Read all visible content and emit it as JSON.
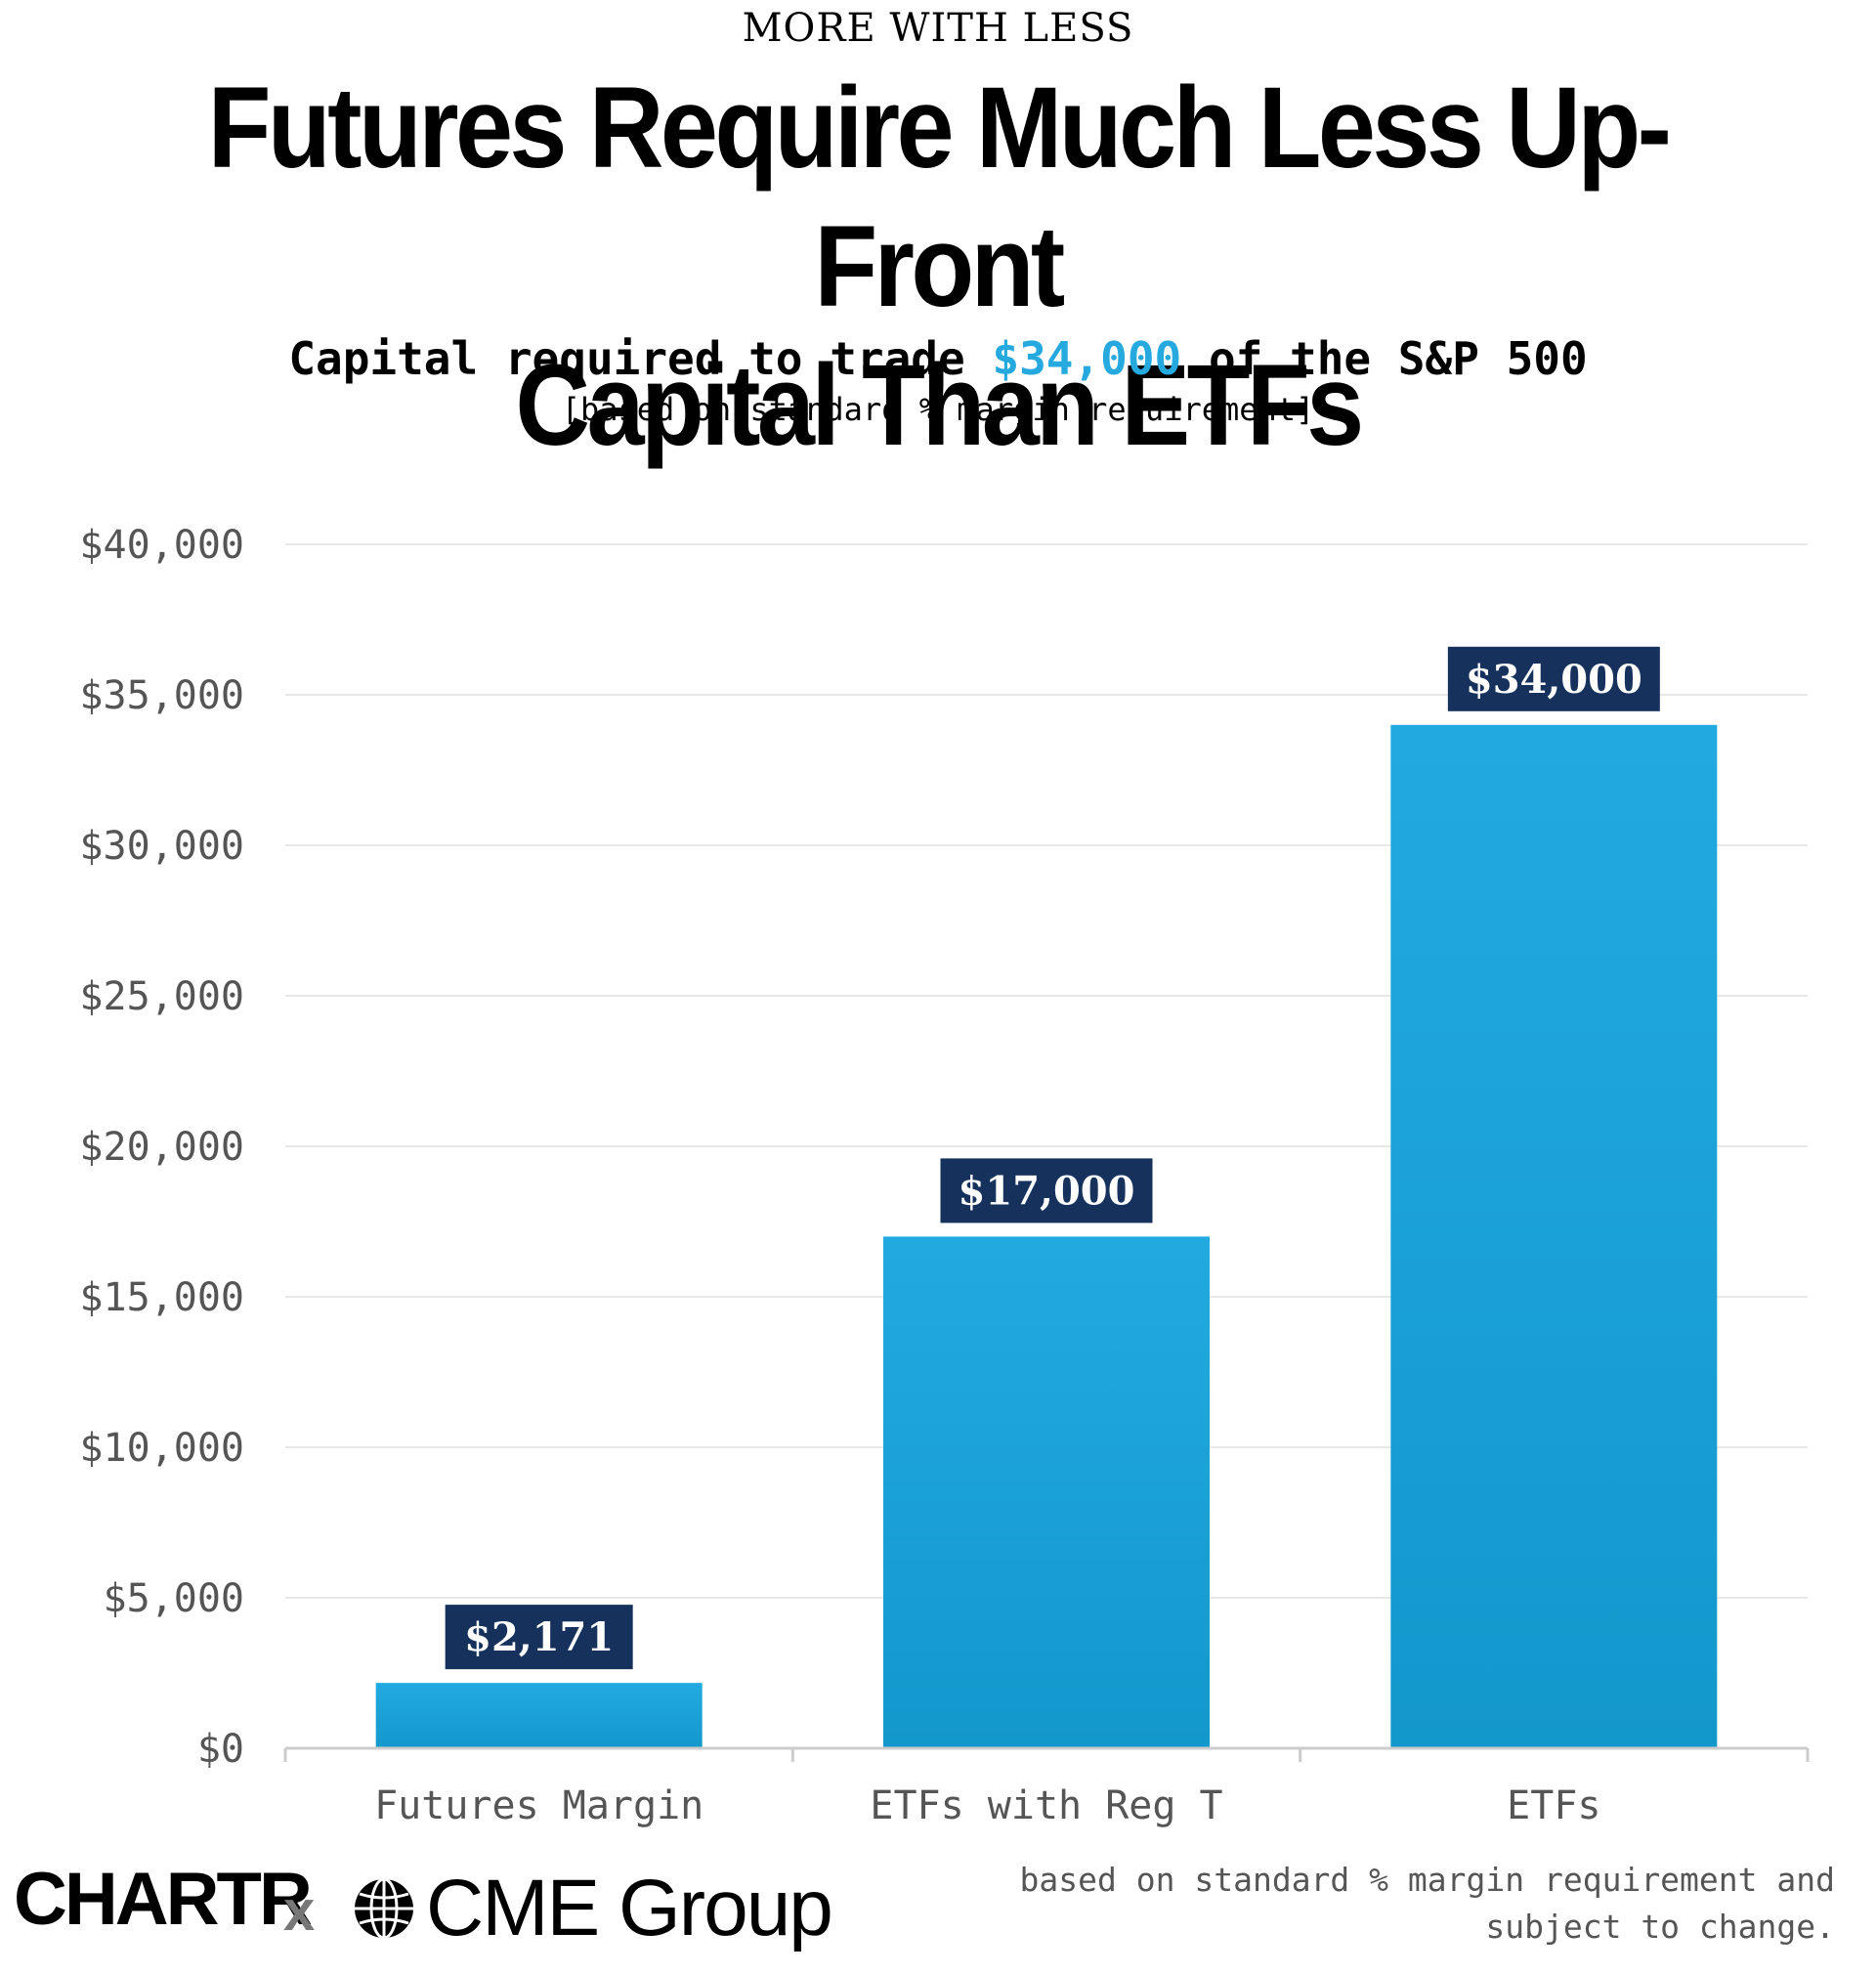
{
  "header": {
    "kicker": "MORE WITH LESS",
    "title_line1": "Futures Require Much Less Up-Front",
    "title_line2": "Capital Than ETFs",
    "subtitle_pre": "Capital required to trade ",
    "subtitle_highlight": "$34,000",
    "subtitle_post": " of the S&P 500",
    "subnote": "[based on standard % margin requirement]"
  },
  "colors": {
    "bar": "#22aae0",
    "bar_bottom": "#1398cc",
    "label_bg": "#16325c",
    "highlight": "#25a9de",
    "grid": "#e8e8e8",
    "axis": "#cccccc"
  },
  "chart_data": {
    "type": "bar",
    "title": "Capital required to trade $34,000 of the S&P 500",
    "xlabel": "",
    "ylabel": "",
    "categories": [
      "Futures Margin",
      "ETFs with Reg T",
      "ETFs"
    ],
    "values": [
      2171,
      17000,
      34000
    ],
    "value_labels": [
      "$2,171",
      "$17,000",
      "$34,000"
    ],
    "ylim": [
      0,
      40000
    ],
    "yticks": [
      0,
      5000,
      10000,
      15000,
      20000,
      25000,
      30000,
      35000,
      40000
    ],
    "ytick_labels": [
      "$0",
      "$5,000",
      "$10,000",
      "$15,000",
      "$20,000",
      "$25,000",
      "$30,000",
      "$35,000",
      "$40,000"
    ],
    "grid": true,
    "legend": "none"
  },
  "footer": {
    "logo_chartr": "CHARTR",
    "logo_x": "x",
    "logo_cme": "CME Group",
    "note_line1": "based on standard % margin requirement and",
    "note_line2": "subject to change."
  }
}
